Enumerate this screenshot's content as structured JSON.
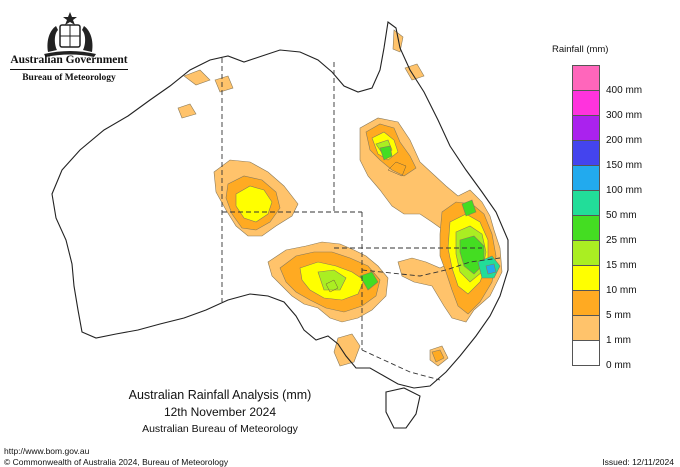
{
  "header": {
    "government": "Australian Government",
    "agency": "Bureau of Meteorology"
  },
  "title": {
    "line1": "Australian Rainfall Analysis (mm)",
    "line2": "12th November 2024",
    "line3": "Australian Bureau of Meteorology"
  },
  "footer": {
    "url": "http://www.bom.gov.au",
    "copyright": "© Commonwealth of Australia 2024, Bureau of Meteorology",
    "issued": "Issued: 12/11/2024"
  },
  "legend": {
    "title": "Rainfall (mm)",
    "items": [
      {
        "label": "400 mm",
        "color": "#ff66bb"
      },
      {
        "label": "300 mm",
        "color": "#ff33dd"
      },
      {
        "label": "200 mm",
        "color": "#aa22ee"
      },
      {
        "label": "150 mm",
        "color": "#4444ee"
      },
      {
        "label": "100 mm",
        "color": "#22aaee"
      },
      {
        "label": "50 mm",
        "color": "#22dd99"
      },
      {
        "label": "25 mm",
        "color": "#44dd22"
      },
      {
        "label": "15 mm",
        "color": "#aaee22"
      },
      {
        "label": "10 mm",
        "color": "#ffff00"
      },
      {
        "label": "5 mm",
        "color": "#ffaa22"
      },
      {
        "label": "1 mm",
        "color": "#ffc36b"
      },
      {
        "label": "0 mm",
        "color": "#ffffff"
      }
    ]
  },
  "icons": {
    "emblem": "commonwealth-coat-of-arms-icon"
  }
}
